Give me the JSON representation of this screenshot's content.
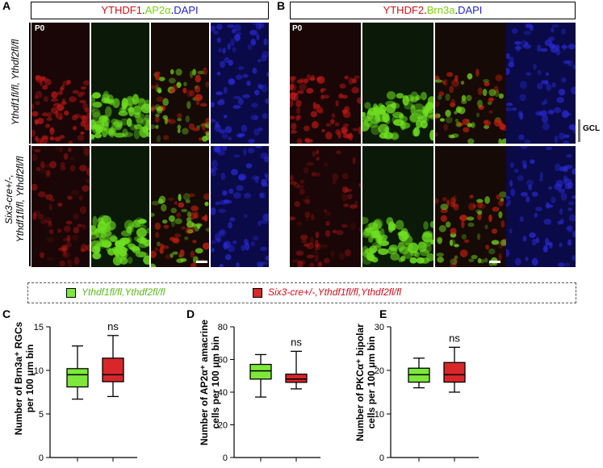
{
  "panel_a": {
    "letter": "A",
    "title": {
      "red": "YTHDF1",
      "green": "AP2α",
      "blue": "DAPI",
      "dot": "."
    },
    "age": "P0",
    "row1_label": "Ythdf1fl/fl, Ythdf2fl/fl",
    "row2_label_line1": "Six3-cre+/-,",
    "row2_label_line2": "Ythdf1fl/fl, Ythdf2fl/fl"
  },
  "panel_b": {
    "letter": "B",
    "title": {
      "red": "YTHDF2",
      "green": "Brn3a",
      "blue": "DAPI",
      "dot": "."
    },
    "age": "P0",
    "gcl": "GCL"
  },
  "legend": {
    "control": "Ythdf1fl/fl,Ythdf2fl/fl",
    "cko": "Six3-cre+/-,Ythdf1fl/fl,Ythdf2fl/fl",
    "control_color": "#7ee83a",
    "cko_color": "#d8262a"
  },
  "chart_data": [
    {
      "letter": "C",
      "type": "boxplot",
      "ylabel_line1": "Number of Brn3a⁺ RGCs",
      "ylabel_line2": "per 100 μm bin",
      "ylim": [
        0,
        15
      ],
      "yticks": [
        "0",
        "5",
        "10",
        "15"
      ],
      "significance": "ns",
      "series": [
        {
          "group": "control",
          "min": 6.7,
          "q1": 8.1,
          "median": 9.5,
          "q3": 10.2,
          "max": 12.8
        },
        {
          "group": "cko",
          "min": 7.0,
          "q1": 8.7,
          "median": 9.5,
          "q3": 11.4,
          "max": 14.0
        }
      ]
    },
    {
      "letter": "D",
      "type": "boxplot",
      "ylabel_line1": "Number of AP2α⁺ amacrine",
      "ylabel_line2": "cells per 100 μm bin",
      "ylim": [
        0,
        80
      ],
      "yticks": [
        "0",
        "20",
        "40",
        "60",
        "80"
      ],
      "significance": "ns",
      "series": [
        {
          "group": "control",
          "min": 37,
          "q1": 48,
          "median": 53,
          "q3": 57,
          "max": 63
        },
        {
          "group": "cko",
          "min": 42,
          "q1": 46,
          "median": 48,
          "q3": 51,
          "max": 65
        }
      ]
    },
    {
      "letter": "E",
      "type": "boxplot",
      "ylabel_line1": "Number of PKCα⁺ bipolar",
      "ylabel_line2": "cells per 100 μm bin",
      "ylim": [
        0,
        30
      ],
      "yticks": [
        "0",
        "10",
        "20",
        "30"
      ],
      "significance": "ns",
      "series": [
        {
          "group": "control",
          "min": 16,
          "q1": 17.3,
          "median": 19,
          "q3": 20.5,
          "max": 22.8
        },
        {
          "group": "cko",
          "min": 15,
          "q1": 17.3,
          "median": 19,
          "q3": 21.8,
          "max": 25.3
        }
      ]
    }
  ]
}
